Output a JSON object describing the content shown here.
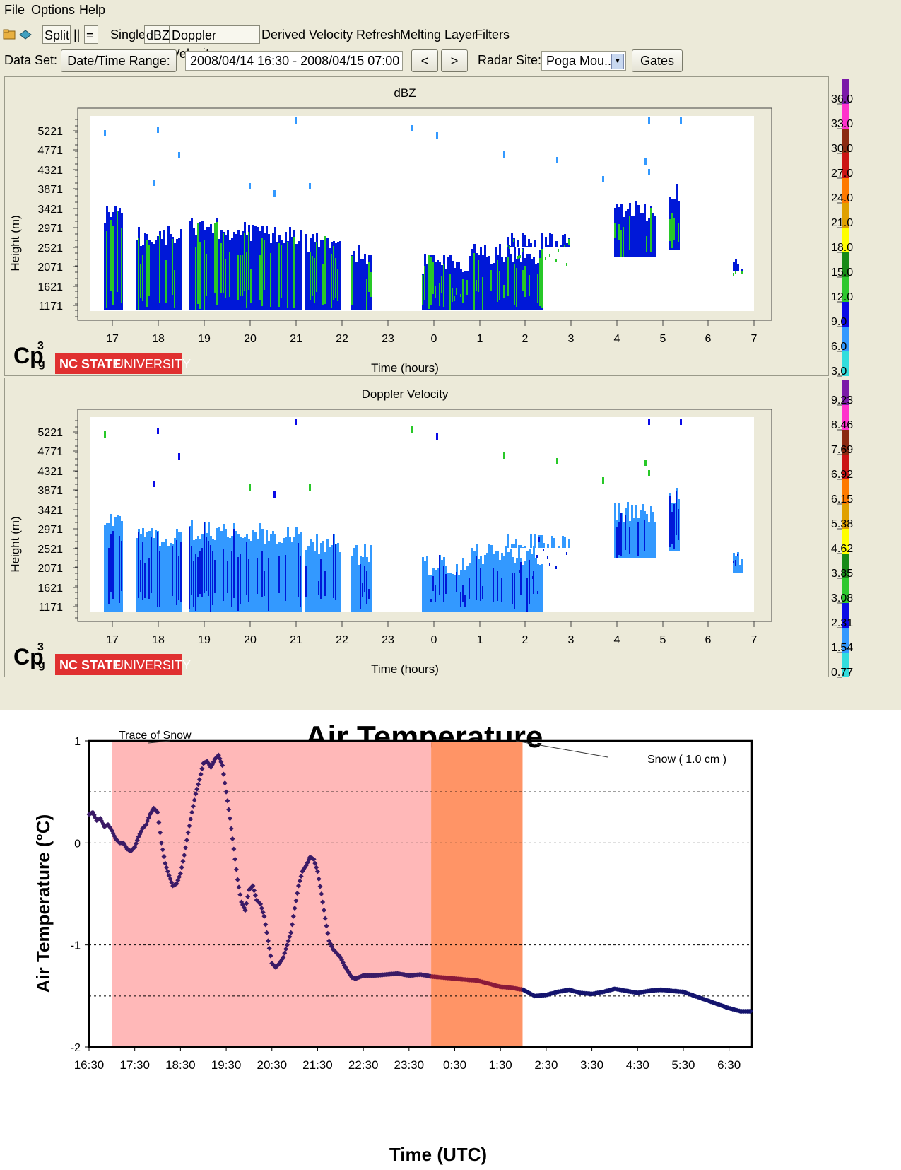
{
  "menu": {
    "file": "File",
    "options": "Options",
    "help": "Help"
  },
  "toolbar": {
    "split": "Split",
    "pipes": "||",
    "equals": "=",
    "single": "Single",
    "dbz": "dBZ",
    "doppler": "Doppler Velocity",
    "derived": "Derived Velocity",
    "refresh": "Refresh",
    "melting": "Melting Layer",
    "filters": "Filters"
  },
  "dataset": {
    "label": "Data Set:",
    "range_button": "Date/Time Range:",
    "range_value": "2008/04/14 16:30 - 2008/04/15 07:00",
    "prev": "<",
    "next": ">",
    "radar_label": "Radar Site:",
    "radar_value": "Poga Mou...",
    "gates": "Gates"
  },
  "logo": {
    "text": "Cp",
    "sup": "3",
    "sub": "g",
    "university": "NC STATE",
    "university2": "UNIVERSITY"
  },
  "panels": [
    {
      "title": "dBZ",
      "xlabel": "Time (hours)",
      "ylabel": "Height (m)",
      "yticks": [
        "5221",
        "4771",
        "4321",
        "3871",
        "3421",
        "2971",
        "2521",
        "2071",
        "1621",
        "1171"
      ],
      "xticks": [
        "17",
        "18",
        "19",
        "20",
        "21",
        "22",
        "23",
        "0",
        "1",
        "2",
        "3",
        "4",
        "5",
        "6",
        "7"
      ],
      "legend": [
        "36.0",
        "33.0",
        "30.0",
        "27.0",
        "24.0",
        "21.0",
        "18.0",
        "15.0",
        "12.0",
        "9.0",
        "6.0",
        "3.0"
      ]
    },
    {
      "title": "Doppler Velocity",
      "xlabel": "Time (hours)",
      "ylabel": "Height (m)",
      "yticks": [
        "5221",
        "4771",
        "4321",
        "3871",
        "3421",
        "2971",
        "2521",
        "2071",
        "1621",
        "1171"
      ],
      "xticks": [
        "17",
        "18",
        "19",
        "20",
        "21",
        "22",
        "23",
        "0",
        "1",
        "2",
        "3",
        "4",
        "5",
        "6",
        "7"
      ],
      "legend": [
        "9.23",
        "8.46",
        "7.69",
        "6.92",
        "6.15",
        "5.38",
        "4.62",
        "3.85",
        "3.08",
        "2.31",
        "1.54",
        "0.77"
      ]
    }
  ],
  "colors": {
    "legend_bar": [
      "#7a1aa8",
      "#ff33cc",
      "#8b2a10",
      "#cc1414",
      "#ff7a00",
      "#e0a000",
      "#ffff00",
      "#178a17",
      "#2ec82e",
      "#0a0ae6",
      "#3399ff",
      "#33dddd"
    ],
    "echo_blue": "#0018d8",
    "echo_green": "#28c828",
    "vel_light": "#3399ff",
    "snow_trace": "#ffb8b8",
    "snow_heavy": "#ff9466",
    "temp_trace": "#3a1a66",
    "nc_state": "#e03030"
  },
  "chart_data": {
    "type": "scatter",
    "title": "Air Temperature",
    "xlabel": "Time (UTC)",
    "ylabel": "Air Temperature (°C)",
    "ylim": [
      -2,
      1
    ],
    "yticks": [
      "1",
      "0",
      "-1",
      "-2"
    ],
    "xticks": [
      "16:30",
      "17:30",
      "18:30",
      "19:30",
      "20:30",
      "21:30",
      "22:30",
      "23:30",
      "0:30",
      "1:30",
      "2:30",
      "3:30",
      "4:30",
      "5:30",
      "6:30"
    ],
    "grid": "dotted horizontal at 0.5 intervals",
    "annotations": [
      {
        "label": "Trace of Snow",
        "start": "17:00",
        "end": "23:59"
      },
      {
        "label": "Snow ( 1.0 cm )",
        "start": "23:59",
        "end": "01:59"
      }
    ],
    "series": [
      {
        "points": [
          [
            "16:30",
            0.28
          ],
          [
            "16:35",
            0.3
          ],
          [
            "16:40",
            0.22
          ],
          [
            "16:45",
            0.24
          ],
          [
            "16:50",
            0.16
          ],
          [
            "16:55",
            0.18
          ],
          [
            "17:00",
            0.12
          ],
          [
            "17:05",
            0.04
          ],
          [
            "17:10",
            0.0
          ],
          [
            "17:15",
            0.0
          ],
          [
            "17:20",
            -0.06
          ],
          [
            "17:25",
            -0.08
          ],
          [
            "17:30",
            -0.04
          ],
          [
            "17:35",
            0.06
          ],
          [
            "17:40",
            0.14
          ],
          [
            "17:45",
            0.18
          ],
          [
            "17:50",
            0.28
          ],
          [
            "17:55",
            0.34
          ],
          [
            "18:00",
            0.3
          ],
          [
            "18:05",
            0.0
          ],
          [
            "18:10",
            -0.2
          ],
          [
            "18:15",
            -0.32
          ],
          [
            "18:20",
            -0.42
          ],
          [
            "18:25",
            -0.4
          ],
          [
            "18:30",
            -0.3
          ],
          [
            "18:35",
            -0.12
          ],
          [
            "18:40",
            0.1
          ],
          [
            "18:45",
            0.3
          ],
          [
            "18:50",
            0.48
          ],
          [
            "18:55",
            0.62
          ],
          [
            "19:00",
            0.78
          ],
          [
            "19:05",
            0.8
          ],
          [
            "19:10",
            0.74
          ],
          [
            "19:15",
            0.82
          ],
          [
            "19:20",
            0.86
          ],
          [
            "19:25",
            0.76
          ],
          [
            "19:30",
            0.5
          ],
          [
            "19:35",
            0.24
          ],
          [
            "19:40",
            -0.06
          ],
          [
            "19:45",
            -0.36
          ],
          [
            "19:50",
            -0.58
          ],
          [
            "19:55",
            -0.66
          ],
          [
            "20:00",
            -0.46
          ],
          [
            "20:05",
            -0.42
          ],
          [
            "20:10",
            -0.56
          ],
          [
            "20:15",
            -0.6
          ],
          [
            "20:20",
            -0.72
          ],
          [
            "20:25",
            -0.96
          ],
          [
            "20:30",
            -1.18
          ],
          [
            "20:35",
            -1.22
          ],
          [
            "20:40",
            -1.18
          ],
          [
            "20:45",
            -1.12
          ],
          [
            "20:50",
            -1.0
          ],
          [
            "20:55",
            -0.88
          ],
          [
            "21:00",
            -0.64
          ],
          [
            "21:05",
            -0.42
          ],
          [
            "21:10",
            -0.28
          ],
          [
            "21:15",
            -0.22
          ],
          [
            "21:20",
            -0.14
          ],
          [
            "21:25",
            -0.16
          ],
          [
            "21:30",
            -0.28
          ],
          [
            "21:35",
            -0.5
          ],
          [
            "21:40",
            -0.74
          ],
          [
            "21:45",
            -0.96
          ],
          [
            "21:50",
            -1.04
          ],
          [
            "21:55",
            -1.08
          ],
          [
            "22:00",
            -1.12
          ],
          [
            "22:05",
            -1.2
          ],
          [
            "22:10",
            -1.26
          ],
          [
            "22:15",
            -1.32
          ],
          [
            "22:20",
            -1.33
          ],
          [
            "22:30",
            -1.3
          ],
          [
            "22:45",
            -1.3
          ],
          [
            "23:00",
            -1.29
          ],
          [
            "23:15",
            -1.28
          ],
          [
            "23:30",
            -1.3
          ],
          [
            "23:45",
            -1.29
          ],
          [
            "0:00",
            -1.31
          ],
          [
            "0:15",
            -1.32
          ],
          [
            "0:30",
            -1.33
          ],
          [
            "0:45",
            -1.34
          ],
          [
            "1:00",
            -1.35
          ],
          [
            "1:15",
            -1.38
          ],
          [
            "1:30",
            -1.41
          ],
          [
            "1:45",
            -1.42
          ],
          [
            "2:00",
            -1.44
          ],
          [
            "2:15",
            -1.5
          ],
          [
            "2:30",
            -1.49
          ],
          [
            "2:45",
            -1.46
          ],
          [
            "3:00",
            -1.44
          ],
          [
            "3:15",
            -1.47
          ],
          [
            "3:30",
            -1.48
          ],
          [
            "3:45",
            -1.46
          ],
          [
            "4:00",
            -1.43
          ],
          [
            "4:15",
            -1.45
          ],
          [
            "4:30",
            -1.47
          ],
          [
            "4:45",
            -1.45
          ],
          [
            "5:00",
            -1.44
          ],
          [
            "5:15",
            -1.45
          ],
          [
            "5:30",
            -1.46
          ],
          [
            "5:45",
            -1.5
          ],
          [
            "6:00",
            -1.54
          ],
          [
            "6:15",
            -1.58
          ],
          [
            "6:30",
            -1.62
          ],
          [
            "6:45",
            -1.65
          ],
          [
            "7:00",
            -1.65
          ]
        ]
      }
    ]
  }
}
